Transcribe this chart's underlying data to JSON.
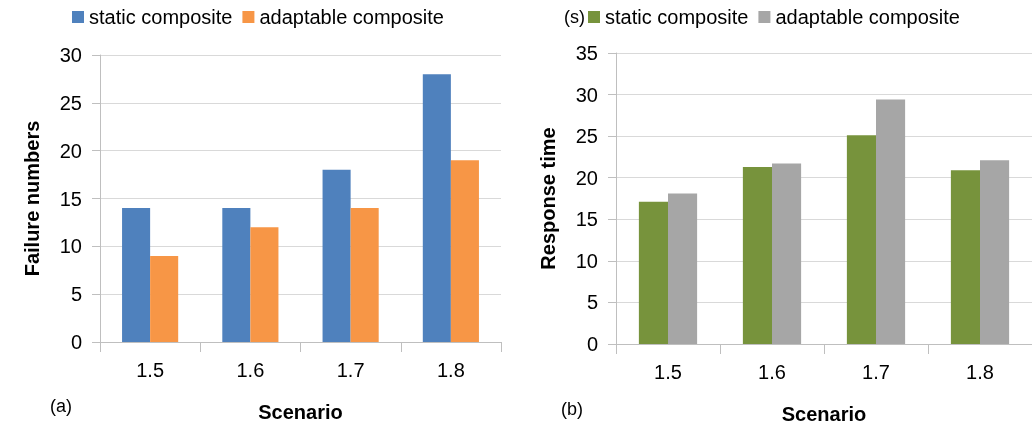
{
  "chart_data": [
    {
      "type": "bar",
      "categories": [
        "1.5",
        "1.6",
        "1.7",
        "1.8"
      ],
      "xlabel": "Scenario",
      "ylabel": "Failure numbers",
      "ylim": [
        0,
        30
      ],
      "yticks": [
        0,
        5,
        10,
        15,
        20,
        25,
        30
      ],
      "grid": "y",
      "legend": "top",
      "annotations": [
        "(a)"
      ],
      "series": [
        {
          "name": "static composite",
          "color": "#4f81bd",
          "values": [
            14,
            14,
            18,
            28
          ]
        },
        {
          "name": "adaptable composite",
          "color": "#f79646",
          "values": [
            9,
            12,
            14,
            19
          ]
        }
      ]
    },
    {
      "type": "bar",
      "categories": [
        "1.5",
        "1.6",
        "1.7",
        "1.8"
      ],
      "xlabel": "Scenario",
      "ylabel": "Response time",
      "ylim": [
        0,
        35
      ],
      "yticks": [
        0,
        5,
        10,
        15,
        20,
        25,
        30,
        35
      ],
      "grid": "y",
      "legend": "top",
      "annotations": [
        "(s)",
        "(b)"
      ],
      "series": [
        {
          "name": "static composite",
          "color": "#77933c",
          "values": [
            17.1,
            21.3,
            25.1,
            20.9
          ]
        },
        {
          "name": "adaptable composite",
          "color": "#a6a6a6",
          "values": [
            18.1,
            21.7,
            29.4,
            22.1
          ]
        }
      ]
    }
  ]
}
